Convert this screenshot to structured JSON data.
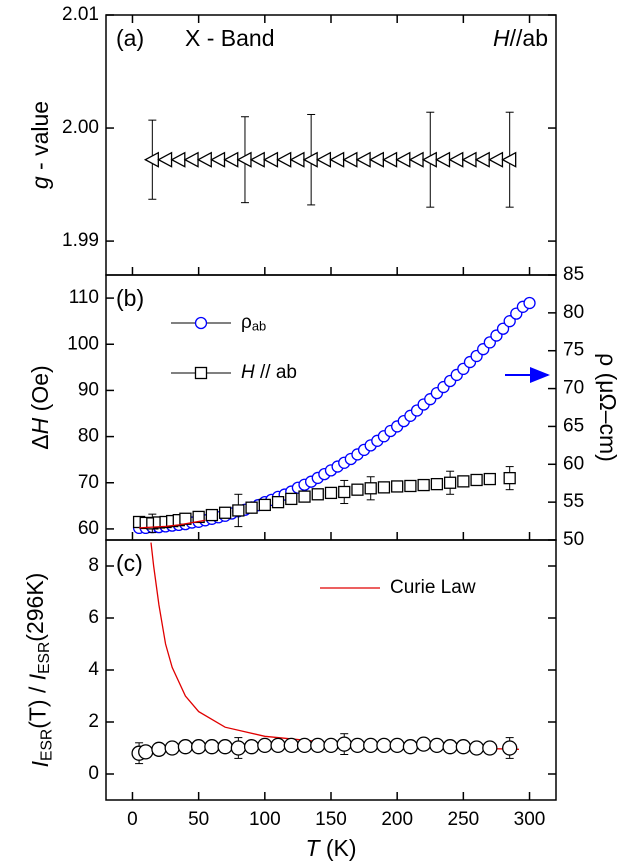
{
  "chart_data": [
    {
      "type": "scatter",
      "panel_label": "(a)",
      "annotations": [
        [
          {
            "t": "X - Band"
          }
        ],
        [
          {
            "t": "H",
            "style": "italic"
          },
          {
            "t": "//ab"
          }
        ]
      ],
      "ylabel": [
        {
          "t": "g",
          "style": "italic"
        },
        {
          "t": " - value"
        }
      ],
      "xlim": [
        -20,
        320
      ],
      "ylim": [
        1.987,
        2.01
      ],
      "yticks": [
        1.99,
        {
          "value": 2,
          "label": "2.00"
        },
        2.01
      ],
      "series": [
        {
          "kind": "marker",
          "marker": "triangle-left",
          "color": "#000000",
          "x": [
            15,
            25,
            35,
            45,
            55,
            65,
            75,
            85,
            95,
            105,
            115,
            125,
            135,
            145,
            155,
            165,
            175,
            185,
            195,
            205,
            215,
            225,
            235,
            245,
            255,
            265,
            275,
            285
          ],
          "values": [
            1.9972,
            1.9972,
            1.9972,
            1.9972,
            1.9972,
            1.9972,
            1.9972,
            1.9972,
            1.9972,
            1.9972,
            1.9972,
            1.9972,
            1.9972,
            1.9972,
            1.9972,
            1.9972,
            1.9972,
            1.9972,
            1.9972,
            1.9972,
            1.9972,
            1.9972,
            1.9972,
            1.9972,
            1.9972,
            1.9972,
            1.9972,
            1.9972
          ],
          "errors": [
            0.0035,
            null,
            null,
            null,
            null,
            null,
            null,
            0.0038,
            null,
            null,
            null,
            null,
            0.004,
            null,
            null,
            null,
            null,
            null,
            null,
            null,
            null,
            0.0042,
            null,
            null,
            null,
            null,
            null,
            0.0042
          ]
        }
      ]
    },
    {
      "type": "scatter",
      "panel_label": "(b)",
      "ylabel": [
        {
          "t": "Δ"
        },
        {
          "t": "H",
          "style": "italic"
        },
        {
          "t": " (Oe)"
        }
      ],
      "y2label": "ρ (μΩ–cm)",
      "xlim": [
        -20,
        320
      ],
      "ylim": [
        57.6,
        115
      ],
      "yticks": [
        60,
        70,
        80,
        90,
        100,
        110
      ],
      "y2lim": [
        50,
        85
      ],
      "y2ticks": [
        50,
        55,
        60,
        65,
        70,
        75,
        80,
        85
      ],
      "legend": "upper left",
      "series": [
        {
          "name": [
            {
              "t": "ρ"
            },
            {
              "t": "ab",
              "style": "sub"
            }
          ],
          "kind": "marker",
          "marker": "circle",
          "color": "#0000ff",
          "axis": "y2",
          "x": [
            5,
            10,
            15,
            20,
            25,
            30,
            35,
            40,
            45,
            50,
            55,
            60,
            65,
            70,
            75,
            80,
            85,
            90,
            95,
            100,
            105,
            110,
            115,
            120,
            125,
            130,
            135,
            140,
            145,
            150,
            155,
            160,
            165,
            170,
            175,
            180,
            185,
            190,
            195,
            200,
            205,
            210,
            215,
            220,
            225,
            230,
            235,
            240,
            245,
            250,
            255,
            260,
            265,
            270,
            275,
            280,
            285,
            290,
            295,
            300
          ],
          "values": [
            51.6,
            51.6,
            51.7,
            51.7,
            51.8,
            51.9,
            52.0,
            52.1,
            52.3,
            52.4,
            52.6,
            52.8,
            53.0,
            53.2,
            53.5,
            53.8,
            54.0,
            54.3,
            54.6,
            55.0,
            55.3,
            55.7,
            56.0,
            56.4,
            56.9,
            57.3,
            57.7,
            58.2,
            58.7,
            59.2,
            59.7,
            60.2,
            60.7,
            61.3,
            61.9,
            62.5,
            63.1,
            63.7,
            64.4,
            65.0,
            65.7,
            66.4,
            67.1,
            67.9,
            68.6,
            69.4,
            70.2,
            71.0,
            71.8,
            72.6,
            73.5,
            74.3,
            75.2,
            76.1,
            77.0,
            77.9,
            78.9,
            79.9,
            80.8,
            81.3
          ]
        },
        {
          "name": [
            {
              "t": "H",
              "style": "italic"
            },
            {
              "t": " // ab"
            }
          ],
          "kind": "marker",
          "marker": "square",
          "color": "#000000",
          "x": [
            5,
            10,
            15,
            20,
            25,
            30,
            35,
            40,
            50,
            60,
            70,
            80,
            90,
            100,
            110,
            120,
            130,
            140,
            150,
            160,
            170,
            180,
            190,
            200,
            210,
            220,
            230,
            240,
            250,
            260,
            270,
            285
          ],
          "values": [
            61.5,
            61.3,
            61.2,
            61.4,
            61.5,
            61.7,
            61.9,
            62.2,
            62.6,
            63.0,
            63.5,
            64.0,
            64.6,
            65.2,
            65.8,
            66.5,
            67.0,
            67.5,
            67.8,
            68.0,
            68.5,
            68.8,
            69.0,
            69.2,
            69.3,
            69.5,
            69.7,
            70.0,
            70.3,
            70.6,
            70.8,
            71.0
          ],
          "errors": [
            null,
            null,
            2.0,
            null,
            null,
            null,
            null,
            null,
            null,
            null,
            null,
            3.5,
            null,
            null,
            null,
            null,
            null,
            null,
            null,
            2.5,
            null,
            2.5,
            null,
            null,
            null,
            null,
            null,
            2.5,
            null,
            null,
            null,
            2.5
          ]
        },
        {
          "kind": "line",
          "color": "#e00000",
          "axis": "y2",
          "x": [
            5,
            15,
            25,
            35,
            45,
            55
          ],
          "values": [
            51.6,
            51.7,
            51.8,
            52.0,
            52.3,
            52.6
          ]
        }
      ]
    },
    {
      "type": "scatter",
      "panel_label": "(c)",
      "ylabel": [
        {
          "t": "I",
          "style": "italic"
        },
        {
          "t": "ESR",
          "style": "sub"
        },
        {
          "t": "(T) / "
        },
        {
          "t": "I",
          "style": "italic"
        },
        {
          "t": "ESR",
          "style": "sub"
        },
        {
          "t": "(296K)"
        }
      ],
      "xlabel": [
        {
          "t": "T",
          "style": "italic"
        },
        {
          "t": " (K)"
        }
      ],
      "xlim": [
        -20,
        320
      ],
      "xticks": [
        0,
        50,
        100,
        150,
        200,
        250,
        300
      ],
      "ylim": [
        -1,
        9
      ],
      "yticks": [
        0,
        2,
        4,
        6,
        8
      ],
      "legend": "upper right",
      "series": [
        {
          "name": "Curie Law",
          "kind": "line",
          "color": "#e00000",
          "x": [
            14,
            16,
            20,
            25,
            30,
            40,
            50,
            70,
            100,
            150,
            200,
            250,
            292
          ],
          "values": [
            8.9,
            8.0,
            6.5,
            5.0,
            4.1,
            3.0,
            2.4,
            1.8,
            1.45,
            1.2,
            1.1,
            1.0,
            0.95
          ]
        },
        {
          "kind": "marker",
          "marker": "circle",
          "color": "#000000",
          "x": [
            5,
            10,
            20,
            30,
            40,
            50,
            60,
            70,
            80,
            90,
            100,
            110,
            120,
            130,
            140,
            150,
            160,
            170,
            180,
            190,
            200,
            210,
            220,
            230,
            240,
            250,
            260,
            270,
            285
          ],
          "values": [
            0.8,
            0.85,
            0.95,
            1.0,
            1.05,
            1.05,
            1.05,
            1.05,
            1.0,
            1.05,
            1.1,
            1.1,
            1.1,
            1.1,
            1.1,
            1.1,
            1.15,
            1.1,
            1.1,
            1.1,
            1.1,
            1.05,
            1.15,
            1.1,
            1.05,
            1.05,
            1.0,
            1.0,
            1.0
          ],
          "errors": [
            0.4,
            null,
            null,
            null,
            null,
            null,
            null,
            null,
            0.4,
            null,
            null,
            null,
            null,
            null,
            null,
            null,
            0.4,
            null,
            null,
            null,
            null,
            null,
            null,
            null,
            null,
            null,
            null,
            null,
            0.4
          ]
        }
      ]
    }
  ]
}
